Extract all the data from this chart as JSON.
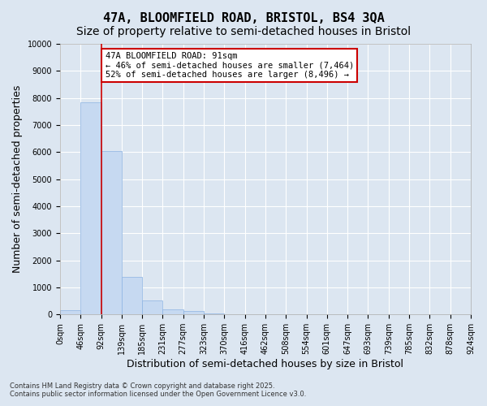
{
  "title_line1": "47A, BLOOMFIELD ROAD, BRISTOL, BS4 3QA",
  "title_line2": "Size of property relative to semi-detached houses in Bristol",
  "xlabel": "Distribution of semi-detached houses by size in Bristol",
  "ylabel": "Number of semi-detached properties",
  "bar_values": [
    150,
    7850,
    6050,
    1380,
    530,
    200,
    120,
    50,
    10,
    5,
    3,
    2,
    0,
    0,
    0,
    0,
    0,
    0,
    0,
    0
  ],
  "bin_labels": [
    "0sqm",
    "46sqm",
    "92sqm",
    "139sqm",
    "185sqm",
    "231sqm",
    "277sqm",
    "323sqm",
    "370sqm",
    "416sqm",
    "462sqm",
    "508sqm",
    "554sqm",
    "601sqm",
    "647sqm",
    "693sqm",
    "739sqm",
    "785sqm",
    "832sqm",
    "878sqm",
    "924sqm"
  ],
  "bar_color": "#c6d9f1",
  "bar_edge_color": "#8db3e2",
  "annotation_box_text": "47A BLOOMFIELD ROAD: 91sqm\n← 46% of semi-detached houses are smaller (7,464)\n52% of semi-detached houses are larger (8,496) →",
  "annotation_box_color": "#ffffff",
  "annotation_box_edge_color": "#cc0000",
  "property_line_x": 2.0,
  "property_line_color": "#cc0000",
  "ylim": [
    0,
    10000
  ],
  "yticks": [
    0,
    1000,
    2000,
    3000,
    4000,
    5000,
    6000,
    7000,
    8000,
    9000,
    10000
  ],
  "footnote": "Contains HM Land Registry data © Crown copyright and database right 2025.\nContains public sector information licensed under the Open Government Licence v3.0.",
  "bg_color": "#dce6f1",
  "plot_bg_color": "#dce6f1",
  "grid_color": "#ffffff",
  "title_fontsize": 11,
  "subtitle_fontsize": 10,
  "tick_fontsize": 7,
  "axis_label_fontsize": 9
}
